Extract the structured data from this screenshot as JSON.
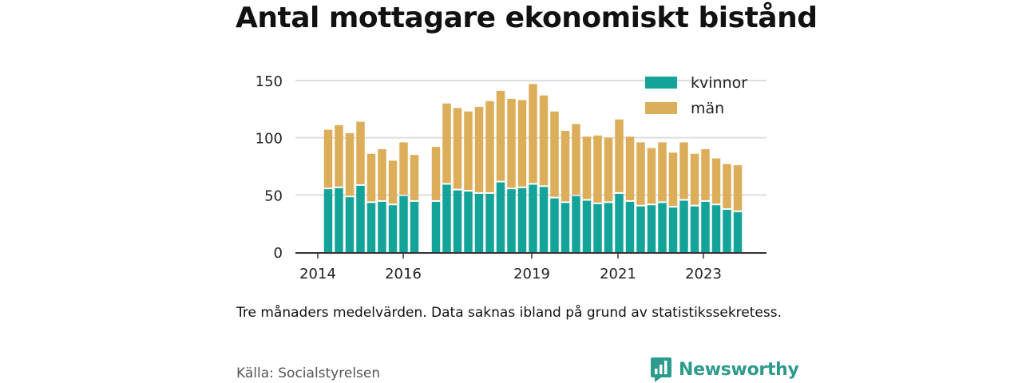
{
  "title": "Antal mottagare ekonomiskt bistånd",
  "note": "Tre månaders medelvärden. Data saknas ibland på grund av statistikssekretess.",
  "source": "Källa: Socialstyrelsen",
  "brand": {
    "name": "Newsworthy",
    "icon": "newsworthy-logo-icon",
    "color": "#2d9b8c"
  },
  "chart_data": {
    "type": "bar",
    "stacked": true,
    "ylim": [
      0,
      150
    ],
    "yticks": [
      0,
      50,
      100,
      150
    ],
    "xtick_labels": [
      "2014",
      "2016",
      "2019",
      "2021",
      "2023"
    ],
    "grid": true,
    "legend_position": "top-right",
    "series": [
      {
        "name": "kvinnor",
        "color": "#14a399",
        "values": [
          55,
          56,
          48,
          58,
          43,
          44,
          41,
          49,
          44,
          null,
          44,
          59,
          54,
          53,
          51,
          51,
          61,
          55,
          56,
          59,
          57,
          47,
          43,
          49,
          45,
          42,
          43,
          51,
          44,
          40,
          41,
          43,
          39,
          45,
          40,
          44,
          41,
          37,
          35
        ]
      },
      {
        "name": "män",
        "color": "#dcae5a",
        "values": [
          52,
          55,
          56,
          56,
          43,
          46,
          39,
          47,
          41,
          null,
          48,
          71,
          72,
          70,
          76,
          81,
          80,
          79,
          77,
          88,
          80,
          76,
          63,
          63,
          56,
          60,
          57,
          65,
          57,
          56,
          50,
          53,
          48,
          51,
          46,
          46,
          41,
          40,
          41
        ]
      }
    ]
  }
}
